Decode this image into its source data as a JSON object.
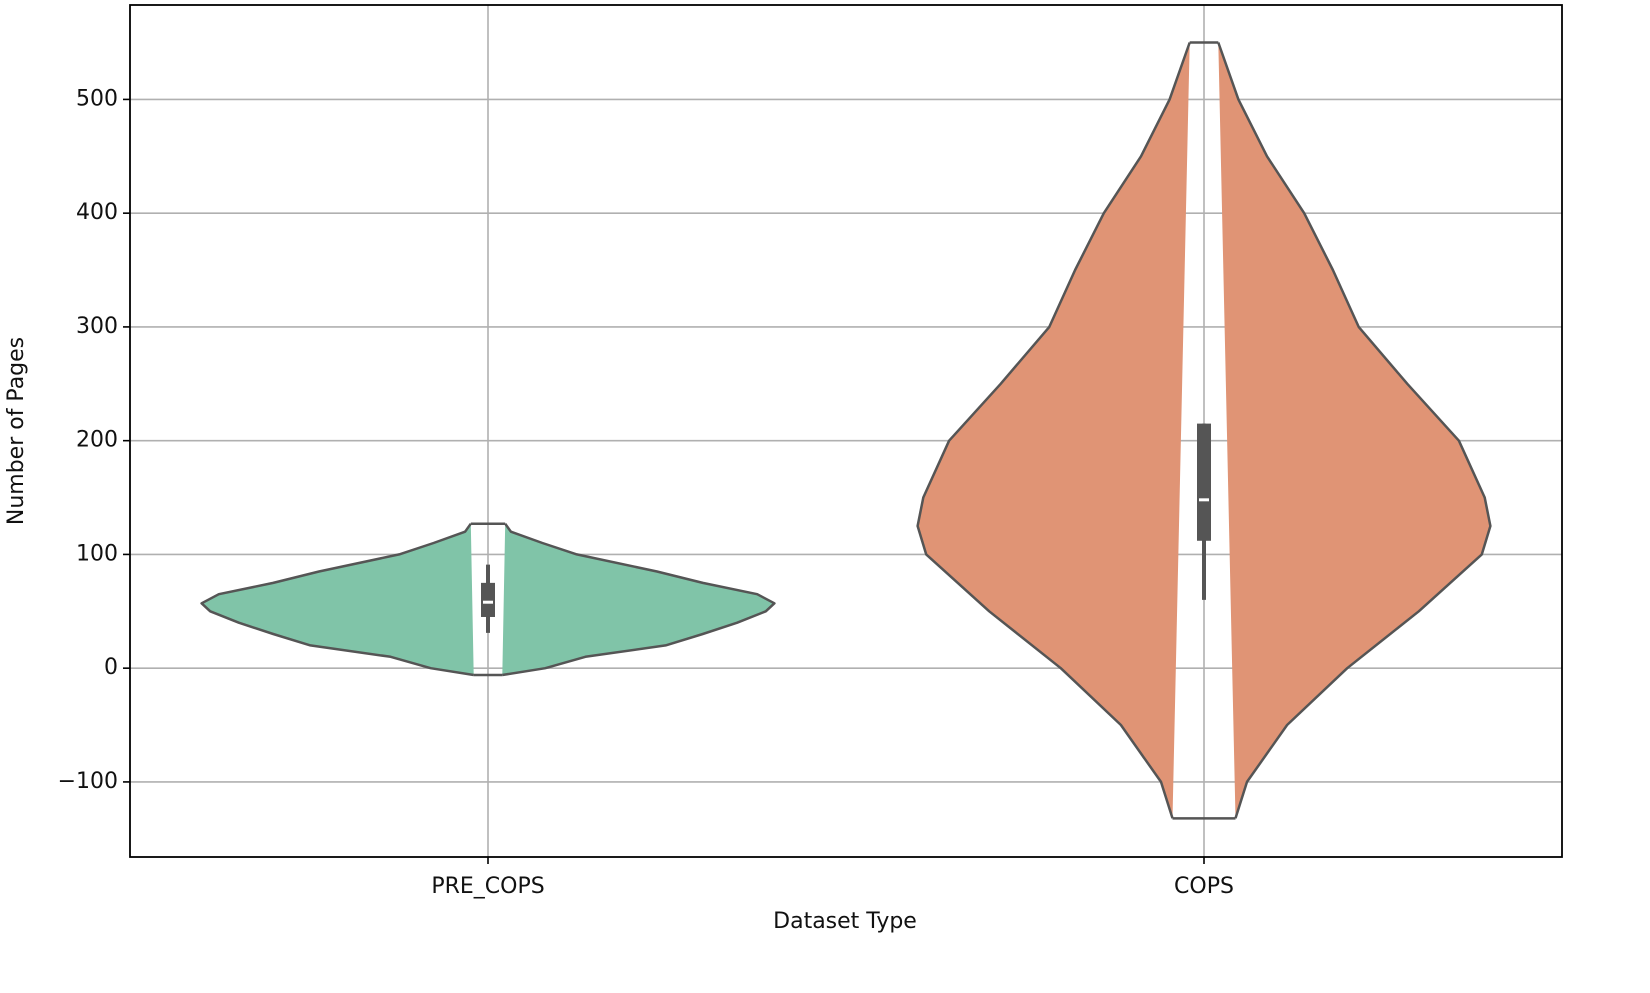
{
  "chart_data": {
    "type": "violin",
    "x_label": "Dataset Type",
    "y_label": "Number of Pages",
    "categories": [
      "PRE_COPS",
      "COPS"
    ],
    "ylim": [
      -166,
      583
    ],
    "yticks": [
      -100,
      0,
      100,
      200,
      300,
      400,
      500
    ],
    "grid": true,
    "series": [
      {
        "name": "PRE_COPS",
        "color": "#80c4a8",
        "kde_y": [
          -6,
          0,
          10,
          20,
          30,
          40,
          50,
          57,
          65,
          75,
          85,
          100,
          110,
          120,
          127
        ],
        "density": [
          0.05,
          0.2,
          0.34,
          0.62,
          0.75,
          0.87,
          0.97,
          1.0,
          0.94,
          0.75,
          0.59,
          0.31,
          0.19,
          0.08,
          0.06
        ],
        "q1": 45,
        "median": 58,
        "q3": 75,
        "whisker_low": 31,
        "whisker_high": 91
      },
      {
        "name": "COPS",
        "color": "#e09475",
        "kde_y": [
          -132,
          -100,
          -50,
          0,
          50,
          100,
          125,
          150,
          200,
          250,
          300,
          350,
          400,
          450,
          500,
          550
        ],
        "density": [
          0.11,
          0.15,
          0.29,
          0.5,
          0.75,
          0.97,
          1.0,
          0.98,
          0.89,
          0.71,
          0.54,
          0.45,
          0.35,
          0.22,
          0.12,
          0.05
        ],
        "q1": 112,
        "median": 148,
        "q3": 215,
        "whisker_low": 60,
        "whisker_high": 215
      }
    ]
  }
}
